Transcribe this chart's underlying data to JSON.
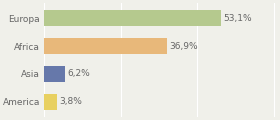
{
  "categories": [
    "Europa",
    "Africa",
    "Asia",
    "America"
  ],
  "values": [
    53.1,
    36.9,
    6.2,
    3.8
  ],
  "labels": [
    "53,1%",
    "36,9%",
    "6,2%",
    "3,8%"
  ],
  "bar_colors": [
    "#b5c98e",
    "#e8b87a",
    "#6678aa",
    "#e8d060"
  ],
  "background_color": "#f0f0ea",
  "xlim": [
    0,
    70
  ],
  "grid_ticks": [
    0,
    23,
    46,
    69
  ],
  "label_fontsize": 6.5,
  "category_fontsize": 6.5,
  "bar_height": 0.55
}
